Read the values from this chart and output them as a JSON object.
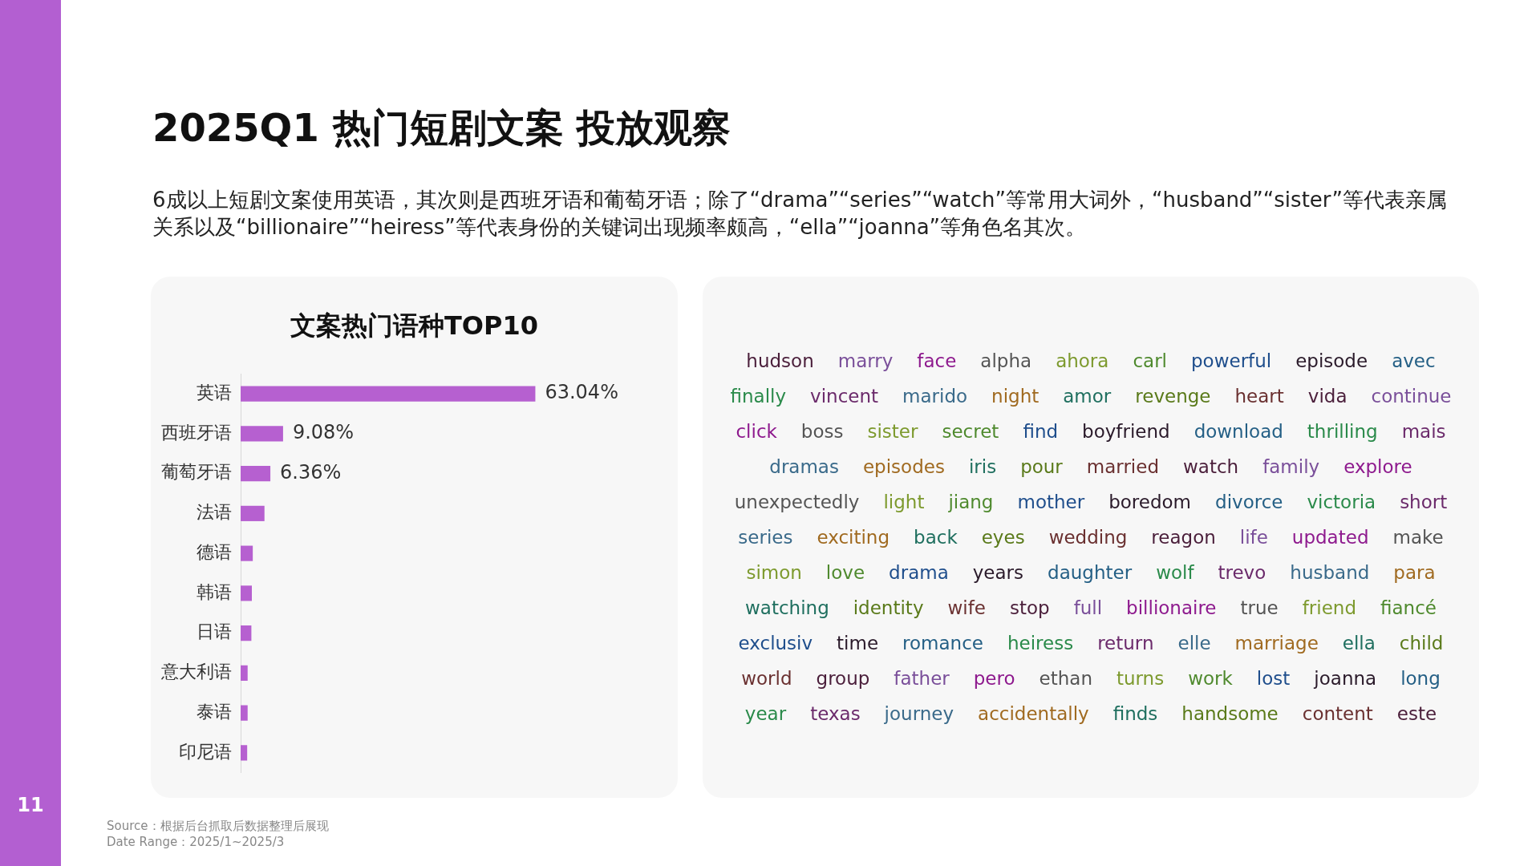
{
  "chart_data": [
    {
      "type": "bar",
      "orientation": "horizontal",
      "title": "文案热门语种TOP10",
      "categories": [
        "英语",
        "西班牙语",
        "葡萄牙语",
        "法语",
        "德语",
        "韩语",
        "日语",
        "意大利语",
        "泰语",
        "印尼语"
      ],
      "values": [
        63.04,
        9.08,
        6.36,
        5.1,
        2.6,
        2.4,
        2.3,
        1.5,
        1.5,
        1.4
      ],
      "value_labels": [
        "63.04%",
        "9.08%",
        "6.36%",
        null,
        null,
        null,
        null,
        null,
        null,
        null
      ],
      "color": "#b660d0",
      "tick_labels": "y",
      "annotations": [
        "2025Q1 热门短剧文案 投放观察",
        "6成以上短剧文案使用英语，其次则是西班牙语和葡萄牙语；除了“drama”“series”“watch”等常用大词外，“husband”“sister”等代表亲属关系以及“billionaire”“heiress”等代表身份的关键词出现频率颇高，“ella”“joanna”等角色名其次。",
        "Source：根据后台抓取后数据整理后展现",
        "Date Range：2025/1~2025/3",
        "11"
      ]
    },
    {
      "type": "other",
      "annotations": [
        "hudson",
        "marry",
        "face",
        "alpha",
        "ahora",
        "carl",
        "powerful",
        "episode",
        "avec",
        "finally",
        "vincent",
        "marido",
        "night",
        "amor",
        "revenge",
        "heart",
        "vida",
        "continue",
        "click",
        "boss",
        "sister",
        "secret",
        "find",
        "boyfriend",
        "download",
        "thrilling",
        "mais",
        "dramas",
        "episodes",
        "iris",
        "pour",
        "married",
        "watch",
        "family",
        "explore",
        "unexpectedly",
        "light",
        "jiang",
        "mother",
        "boredom",
        "divorce",
        "victoria",
        "short",
        "series",
        "exciting",
        "back",
        "eyes",
        "wedding",
        "reagon",
        "life",
        "updated",
        "make",
        "simon",
        "love",
        "drama",
        "years",
        "daughter",
        "wolf",
        "trevo",
        "husband",
        "para",
        "watching",
        "identity",
        "wife",
        "stop",
        "full",
        "billionaire",
        "true",
        "friend",
        "fiancé",
        "exclusiv",
        "time",
        "romance",
        "heiress",
        "return",
        "elle",
        "marriage",
        "ella",
        "child",
        "world",
        "group",
        "father",
        "pero",
        "ethan",
        "turns",
        "work",
        "lost",
        "joanna",
        "long",
        "year",
        "texas",
        "journey",
        "accidentally",
        "finds",
        "handsome",
        "content",
        "este"
      ]
    }
  ]
}
